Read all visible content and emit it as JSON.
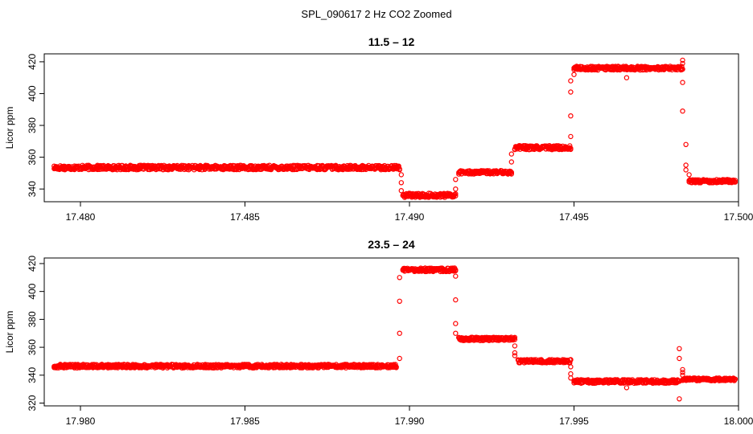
{
  "figure": {
    "title": "SPL_090617  2 Hz CO2 Zoomed"
  },
  "chart_data": [
    {
      "type": "scatter",
      "title": "11.5 – 12",
      "xlabel": "",
      "ylabel": "Licor ppm",
      "xlim": [
        17.4789,
        17.5
      ],
      "ylim": [
        332,
        425
      ],
      "xticks": [
        17.48,
        17.485,
        17.49,
        17.495,
        17.5
      ],
      "xtick_labels": [
        "17.480",
        "17.485",
        "17.490",
        "17.495",
        "17.500"
      ],
      "yticks": [
        340,
        360,
        380,
        400,
        420
      ],
      "ytick_labels": [
        "340",
        "360",
        "380",
        "400",
        "420"
      ],
      "marker_color": "#ff0000",
      "segments": [
        {
          "x_start": 17.4792,
          "x_end": 17.4897,
          "y": 353.5,
          "spread": 1.4
        },
        {
          "x_start": 17.4898,
          "x_end": 17.4914,
          "y": 336.0,
          "spread": 1.3
        },
        {
          "x_start": 17.4915,
          "x_end": 17.4931,
          "y": 350.5,
          "spread": 1.1
        },
        {
          "x_start": 17.4932,
          "x_end": 17.4949,
          "y": 366.0,
          "spread": 1.3
        },
        {
          "x_start": 17.495,
          "x_end": 17.4983,
          "y": 416.0,
          "spread": 1.2
        },
        {
          "x_start": 17.4985,
          "x_end": 17.4999,
          "y": 345.0,
          "spread": 1.1
        }
      ],
      "points": [
        {
          "x": 17.48975,
          "y": 349
        },
        {
          "x": 17.48975,
          "y": 344
        },
        {
          "x": 17.48975,
          "y": 339
        },
        {
          "x": 17.4914,
          "y": 346
        },
        {
          "x": 17.4914,
          "y": 340
        },
        {
          "x": 17.4931,
          "y": 357
        },
        {
          "x": 17.4931,
          "y": 362
        },
        {
          "x": 17.4949,
          "y": 373
        },
        {
          "x": 17.4949,
          "y": 386
        },
        {
          "x": 17.4949,
          "y": 401
        },
        {
          "x": 17.4949,
          "y": 408
        },
        {
          "x": 17.495,
          "y": 412
        },
        {
          "x": 17.4966,
          "y": 410
        },
        {
          "x": 17.4983,
          "y": 421
        },
        {
          "x": 17.4983,
          "y": 419
        },
        {
          "x": 17.4983,
          "y": 407
        },
        {
          "x": 17.4983,
          "y": 389
        },
        {
          "x": 17.4984,
          "y": 368
        },
        {
          "x": 17.4984,
          "y": 355
        },
        {
          "x": 17.4984,
          "y": 352
        },
        {
          "x": 17.4985,
          "y": 349
        }
      ]
    },
    {
      "type": "scatter",
      "title": "23.5 – 24",
      "xlabel": "",
      "ylabel": "Licor ppm",
      "xlim": [
        17.9789,
        18.0
      ],
      "ylim": [
        318,
        424
      ],
      "xticks": [
        17.98,
        17.985,
        17.99,
        17.995,
        18.0
      ],
      "xtick_labels": [
        "17.980",
        "17.985",
        "17.990",
        "17.995",
        "18.000"
      ],
      "yticks": [
        320,
        340,
        360,
        380,
        400,
        420
      ],
      "ytick_labels": [
        "320",
        "340",
        "360",
        "380",
        "400",
        "420"
      ],
      "marker_color": "#ff0000",
      "segments": [
        {
          "x_start": 17.9792,
          "x_end": 17.9896,
          "y": 346.5,
          "spread": 1.3
        },
        {
          "x_start": 17.9898,
          "x_end": 17.9914,
          "y": 415.5,
          "spread": 1.3
        },
        {
          "x_start": 17.9915,
          "x_end": 17.9932,
          "y": 366.0,
          "spread": 1.2
        },
        {
          "x_start": 17.9933,
          "x_end": 17.9949,
          "y": 350.0,
          "spread": 1.2
        },
        {
          "x_start": 17.995,
          "x_end": 17.9982,
          "y": 335.5,
          "spread": 1.3
        },
        {
          "x_start": 17.9983,
          "x_end": 17.9999,
          "y": 337.0,
          "spread": 1.0
        }
      ],
      "points": [
        {
          "x": 17.9897,
          "y": 352
        },
        {
          "x": 17.9897,
          "y": 370
        },
        {
          "x": 17.9897,
          "y": 393
        },
        {
          "x": 17.9897,
          "y": 410
        },
        {
          "x": 17.9914,
          "y": 411
        },
        {
          "x": 17.9914,
          "y": 394
        },
        {
          "x": 17.9914,
          "y": 377
        },
        {
          "x": 17.9914,
          "y": 370
        },
        {
          "x": 17.9932,
          "y": 361
        },
        {
          "x": 17.9932,
          "y": 356
        },
        {
          "x": 17.9932,
          "y": 354
        },
        {
          "x": 17.9949,
          "y": 346
        },
        {
          "x": 17.9949,
          "y": 341
        },
        {
          "x": 17.9949,
          "y": 338
        },
        {
          "x": 17.9966,
          "y": 331
        },
        {
          "x": 17.9982,
          "y": 359
        },
        {
          "x": 17.9982,
          "y": 352
        },
        {
          "x": 17.9983,
          "y": 344
        },
        {
          "x": 17.9983,
          "y": 342
        },
        {
          "x": 17.9983,
          "y": 340
        },
        {
          "x": 17.9982,
          "y": 323
        }
      ]
    }
  ]
}
